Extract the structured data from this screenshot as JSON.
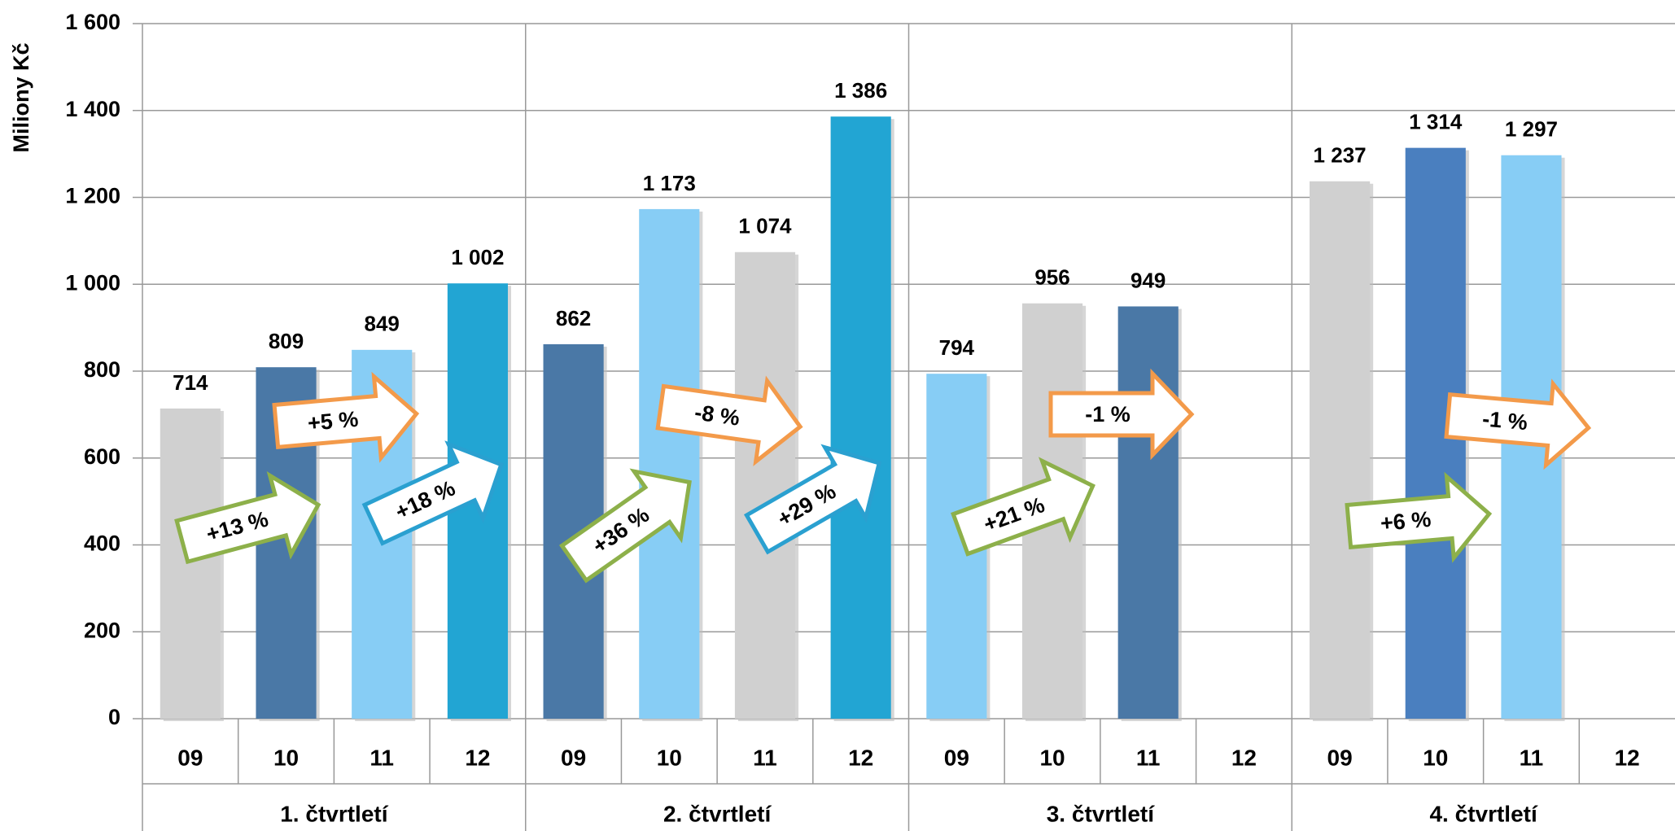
{
  "chart_data": {
    "type": "bar",
    "y_label": "Miliony Kč",
    "categories": [
      "09",
      "10",
      "11",
      "12",
      "09",
      "10",
      "11",
      "12",
      "09",
      "10",
      "11",
      "12",
      "09",
      "10",
      "11",
      "12"
    ],
    "groups": [
      "1. čtvrtletí",
      "2. čtvrtletí",
      "3. čtvrtletí",
      "4. čtvrtletí"
    ],
    "values": [
      714,
      809,
      849,
      1002,
      862,
      1173,
      1074,
      1386,
      794,
      956,
      949,
      null,
      1237,
      1314,
      1297,
      null
    ],
    "value_labels": [
      "714",
      "809",
      "849",
      "1 002",
      "862",
      "1 173",
      "1 074",
      "1 386",
      "794",
      "956",
      "949",
      null,
      "1 237",
      "1 314",
      "1 297",
      null
    ],
    "colors": [
      "#d0d0d0",
      "#4a78a6",
      "#87cdf5",
      "#22a5d3",
      "#4a78a6",
      "#87cdf5",
      "#d0d0d0",
      "#22a5d3",
      "#87cdf5",
      "#d0d0d0",
      "#4a78a6",
      null,
      "#d0d0d0",
      "#4a7fbf",
      "#87cdf5",
      null
    ],
    "ylim": [
      0,
      1600
    ],
    "yticks": [
      0,
      200,
      400,
      600,
      800,
      {
        "value": 1000,
        "label": "1 000"
      },
      {
        "value": 1200,
        "label": "1 200"
      },
      {
        "value": 1400,
        "label": "1 400"
      },
      {
        "value": 1600,
        "label": "1 600"
      }
    ],
    "grid": true,
    "annotations": [
      {
        "text": "+13 %",
        "color": "#8db04a"
      },
      {
        "text": "+5 %",
        "color": "#f39a4a"
      },
      {
        "text": "+18 %",
        "color": "#2aa0d0"
      },
      {
        "text": "+36 %",
        "color": "#8db04a"
      },
      {
        "text": "-8 %",
        "color": "#f39a4a"
      },
      {
        "text": "+29 %",
        "color": "#2aa0d0"
      },
      {
        "text": "+21 %",
        "color": "#8db04a"
      },
      {
        "text": "-1 %",
        "color": "#f39a4a"
      },
      {
        "text": "+6 %",
        "color": "#8db04a"
      },
      {
        "text": "-1 %",
        "color": "#f39a4a"
      }
    ]
  }
}
